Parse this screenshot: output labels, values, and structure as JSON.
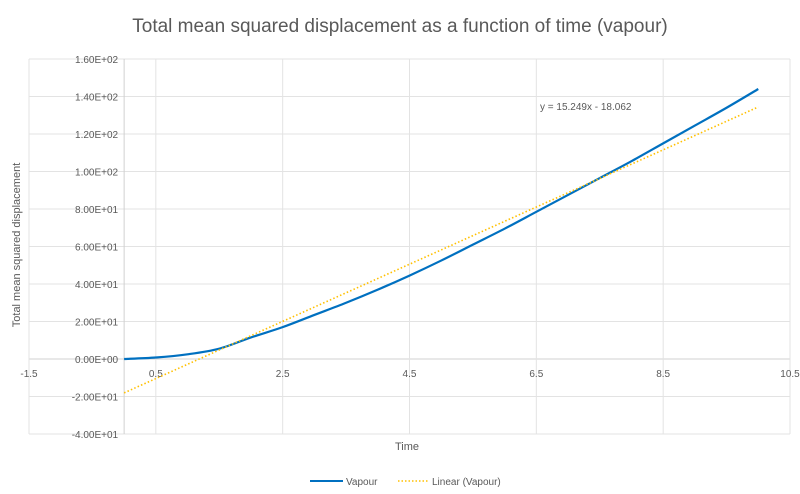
{
  "chart_data": {
    "type": "scatter",
    "title": "Total mean squared displacement as a function of time (vapour)",
    "xlabel": "Time",
    "ylabel": "Total mean squared displacement",
    "xlim": [
      -1.5,
      10.5
    ],
    "ylim": [
      -40,
      160
    ],
    "x_ticks": [
      "-1.5",
      "0.5",
      "2.5",
      "4.5",
      "6.5",
      "8.5",
      "10.5"
    ],
    "x_tick_values": [
      -1.5,
      0.5,
      2.5,
      4.5,
      6.5,
      8.5,
      10.5
    ],
    "y_ticks": [
      "-4.00E+01",
      "-2.00E+01",
      "0.00E+00",
      "2.00E+01",
      "4.00E+01",
      "6.00E+01",
      "8.00E+01",
      "1.00E+02",
      "1.20E+02",
      "1.40E+02",
      "1.60E+02"
    ],
    "y_tick_values": [
      -40,
      -20,
      0,
      20,
      40,
      60,
      80,
      100,
      120,
      140,
      160
    ],
    "grid": true,
    "legend_position": "bottom",
    "series": [
      {
        "name": "Vapour",
        "style": "solid",
        "color": "#0070C0",
        "x": [
          0,
          0.5,
          1,
          1.5,
          2,
          2.5,
          3,
          3.5,
          4,
          4.5,
          5,
          5.5,
          6,
          6.5,
          7,
          7.5,
          8,
          8.5,
          9,
          9.5,
          10
        ],
        "y": [
          0,
          0.8,
          2.5,
          5.5,
          11.5,
          17,
          23.5,
          30,
          37,
          44.5,
          52.5,
          61,
          69.5,
          78.5,
          87.5,
          96.5,
          105.5,
          115,
          124.5,
          134,
          144
        ]
      },
      {
        "name": "Linear (Vapour)",
        "style": "dotted",
        "color": "#FFC000",
        "slope": 15.249,
        "intercept": -18.062,
        "x_range": [
          0,
          10
        ]
      }
    ],
    "annotations": [
      "y = 15.249x - 18.062"
    ]
  }
}
